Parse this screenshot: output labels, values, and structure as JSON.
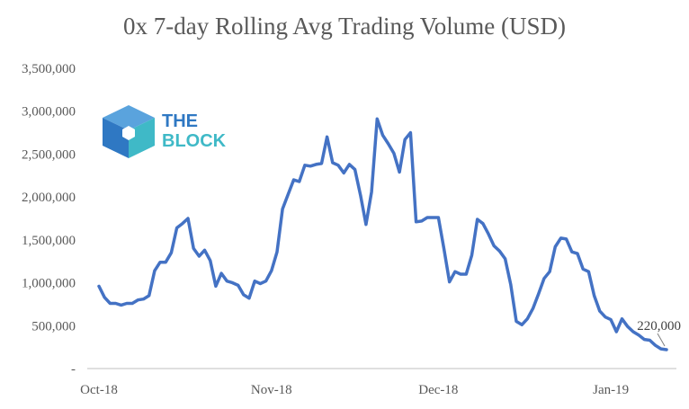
{
  "chart_data": {
    "type": "line",
    "title": "0x 7-day Rolling Avg Trading Volume (USD)",
    "xlabel": "",
    "ylabel": "",
    "ylim": [
      0,
      3500000
    ],
    "yticks": [
      0,
      500000,
      1000000,
      1500000,
      2000000,
      2500000,
      3000000,
      3500000
    ],
    "ytick_labels": [
      "-",
      "500,000",
      "1,000,000",
      "1,500,000",
      "2,000,000",
      "2,500,000",
      "3,000,000",
      "3,500,000"
    ],
    "xtick_labels": [
      {
        "day": 0,
        "label": "Oct-18"
      },
      {
        "day": 31,
        "label": "Nov-18"
      },
      {
        "day": 61,
        "label": "Dec-18"
      },
      {
        "day": 92,
        "label": "Jan-19"
      }
    ],
    "grid": false,
    "legend": "none",
    "line_color": "#4472C4",
    "series": [
      {
        "x": [
          0,
          1,
          2,
          3,
          4,
          5,
          6,
          7,
          8,
          9,
          10,
          11,
          12,
          13,
          14,
          15,
          16,
          17,
          18,
          19,
          20,
          21,
          22,
          23,
          24,
          25,
          26,
          27,
          28,
          29,
          30,
          31,
          32,
          33,
          34,
          35,
          36,
          37,
          38,
          39,
          40,
          41,
          42,
          43,
          44,
          45,
          46,
          47,
          48,
          49,
          50,
          51,
          52,
          53,
          54,
          55,
          56,
          57,
          58,
          59,
          60,
          61,
          62,
          63,
          64,
          65,
          66,
          67,
          68,
          69,
          70,
          71,
          72,
          73,
          74,
          75,
          76,
          77,
          78,
          79,
          80,
          81,
          82,
          83,
          84,
          85,
          86,
          87,
          88,
          89,
          90,
          91,
          92,
          93,
          94,
          95,
          96,
          97,
          98,
          99,
          100,
          101,
          102
        ],
        "values": [
          960000,
          830000,
          760000,
          760000,
          740000,
          760000,
          760000,
          800000,
          810000,
          850000,
          1140000,
          1240000,
          1240000,
          1350000,
          1640000,
          1690000,
          1750000,
          1400000,
          1310000,
          1380000,
          1260000,
          960000,
          1110000,
          1020000,
          1000000,
          970000,
          860000,
          820000,
          1020000,
          990000,
          1020000,
          1140000,
          1360000,
          1860000,
          2030000,
          2200000,
          2180000,
          2370000,
          2360000,
          2380000,
          2390000,
          2700000,
          2400000,
          2370000,
          2280000,
          2380000,
          2320000,
          2020000,
          1680000,
          2060000,
          2910000,
          2720000,
          2620000,
          2510000,
          2290000,
          2670000,
          2750000,
          1710000,
          1720000,
          1760000,
          1760000,
          1760000,
          1400000,
          1010000,
          1130000,
          1100000,
          1100000,
          1320000,
          1740000,
          1690000,
          1570000,
          1430000,
          1370000,
          1280000,
          980000,
          550000,
          510000,
          580000,
          700000,
          870000,
          1050000,
          1130000,
          1420000,
          1520000,
          1510000,
          1360000,
          1340000,
          1160000,
          1130000,
          850000,
          670000,
          600000,
          570000,
          430000,
          580000,
          490000,
          430000,
          390000,
          340000,
          330000,
          270000,
          230000,
          220000
        ]
      }
    ],
    "annotations": [
      {
        "text": "220,000",
        "day": 102,
        "value": 220000
      }
    ]
  },
  "logo": {
    "line1": "THE",
    "line2": "BLOCK",
    "color_top": "#2F78C3",
    "color_bottom": "#3FB9C7"
  }
}
